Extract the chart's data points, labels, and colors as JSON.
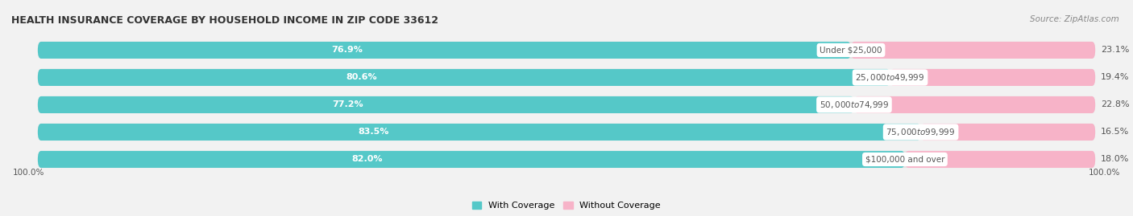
{
  "title": "HEALTH INSURANCE COVERAGE BY HOUSEHOLD INCOME IN ZIP CODE 33612",
  "source": "Source: ZipAtlas.com",
  "categories": [
    "Under $25,000",
    "$25,000 to $49,999",
    "$50,000 to $74,999",
    "$75,000 to $99,999",
    "$100,000 and over"
  ],
  "with_coverage": [
    76.9,
    80.6,
    77.2,
    83.5,
    82.0
  ],
  "without_coverage": [
    23.1,
    19.4,
    22.8,
    16.5,
    18.0
  ],
  "color_with": "#55C8C8",
  "color_without": "#F2789F",
  "color_without_light": "#F7B3C8",
  "bg_color": "#F2F2F2",
  "bar_bg_color": "#E0E0E0",
  "bar_height": 0.62,
  "title_fontsize": 9,
  "label_fontsize": 8,
  "cat_fontsize": 7.5,
  "legend_fontsize": 8,
  "source_fontsize": 7.5
}
